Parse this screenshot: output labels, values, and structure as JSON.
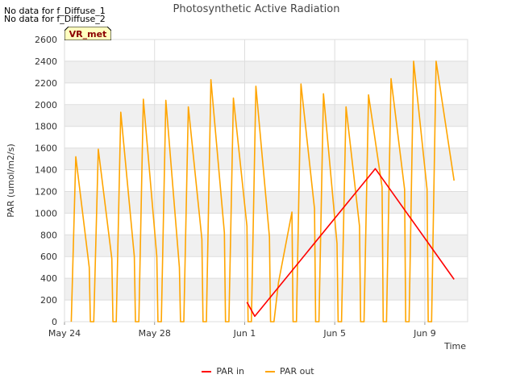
{
  "no_data_lines": [
    "No data for f_Diffuse_1",
    "No data for f_Diffuse_2"
  ],
  "badge_label": "VR_met",
  "colors": {
    "par_in": "#ff0000",
    "par_out": "#ffa500",
    "band": "#f0f0f0",
    "badge_bg": "#ffffc0",
    "badge_text": "#8b0000"
  },
  "chart_data": {
    "type": "line",
    "title": "Photosynthetic Active Radiation",
    "xlabel": "Time",
    "ylabel": "PAR (umol/m2/s)",
    "ylim": [
      0,
      2600
    ],
    "xlim": [
      0,
      17.9
    ],
    "x_unit": "days since May 24",
    "yticks": [
      0,
      200,
      400,
      600,
      800,
      1000,
      1200,
      1400,
      1600,
      1800,
      2000,
      2200,
      2400,
      2600
    ],
    "xticks": [
      {
        "value": 0,
        "label": "May 24"
      },
      {
        "value": 4,
        "label": "May 28"
      },
      {
        "value": 8,
        "label": "Jun 1"
      },
      {
        "value": 12,
        "label": "Jun 5"
      },
      {
        "value": 16,
        "label": "Jun 9"
      }
    ],
    "legend": [
      "PAR in",
      "PAR out"
    ],
    "series": [
      {
        "name": "PAR in",
        "x": [
          8.1,
          8.45,
          13.8,
          17.3
        ],
        "y": [
          180,
          50,
          1410,
          390
        ]
      },
      {
        "name": "PAR out",
        "x": [
          0.3,
          0.5,
          1.1,
          1.15,
          1.3,
          1.5,
          2.1,
          2.15,
          2.3,
          2.5,
          3.1,
          3.15,
          3.3,
          3.5,
          4.1,
          4.15,
          4.3,
          4.5,
          5.1,
          5.15,
          5.3,
          5.5,
          6.1,
          6.15,
          6.3,
          6.5,
          7.1,
          7.15,
          7.3,
          7.5,
          8.1,
          8.15,
          8.3,
          8.5,
          9.1,
          9.15,
          9.3,
          9.5,
          10.1,
          10.15,
          10.3,
          10.5,
          11.1,
          11.15,
          11.3,
          11.5,
          12.1,
          12.15,
          12.3,
          12.5,
          13.1,
          13.15,
          13.3,
          13.5,
          14.1,
          14.15,
          14.3,
          14.5,
          15.1,
          15.15,
          15.3,
          15.5,
          16.1,
          16.15,
          16.3,
          16.5,
          17.3
        ],
        "y": [
          0,
          1520,
          500,
          0,
          0,
          1590,
          580,
          0,
          0,
          1930,
          600,
          0,
          0,
          2050,
          600,
          0,
          0,
          2040,
          500,
          0,
          0,
          1980,
          760,
          0,
          0,
          2230,
          820,
          0,
          0,
          2060,
          880,
          0,
          0,
          2170,
          780,
          0,
          0,
          360,
          1010,
          0,
          0,
          2190,
          1040,
          0,
          0,
          2100,
          720,
          0,
          0,
          1980,
          880,
          0,
          0,
          2090,
          1240,
          0,
          0,
          2240,
          1220,
          0,
          0,
          2400,
          1220,
          0,
          0,
          2400,
          1300
        ]
      }
    ]
  }
}
